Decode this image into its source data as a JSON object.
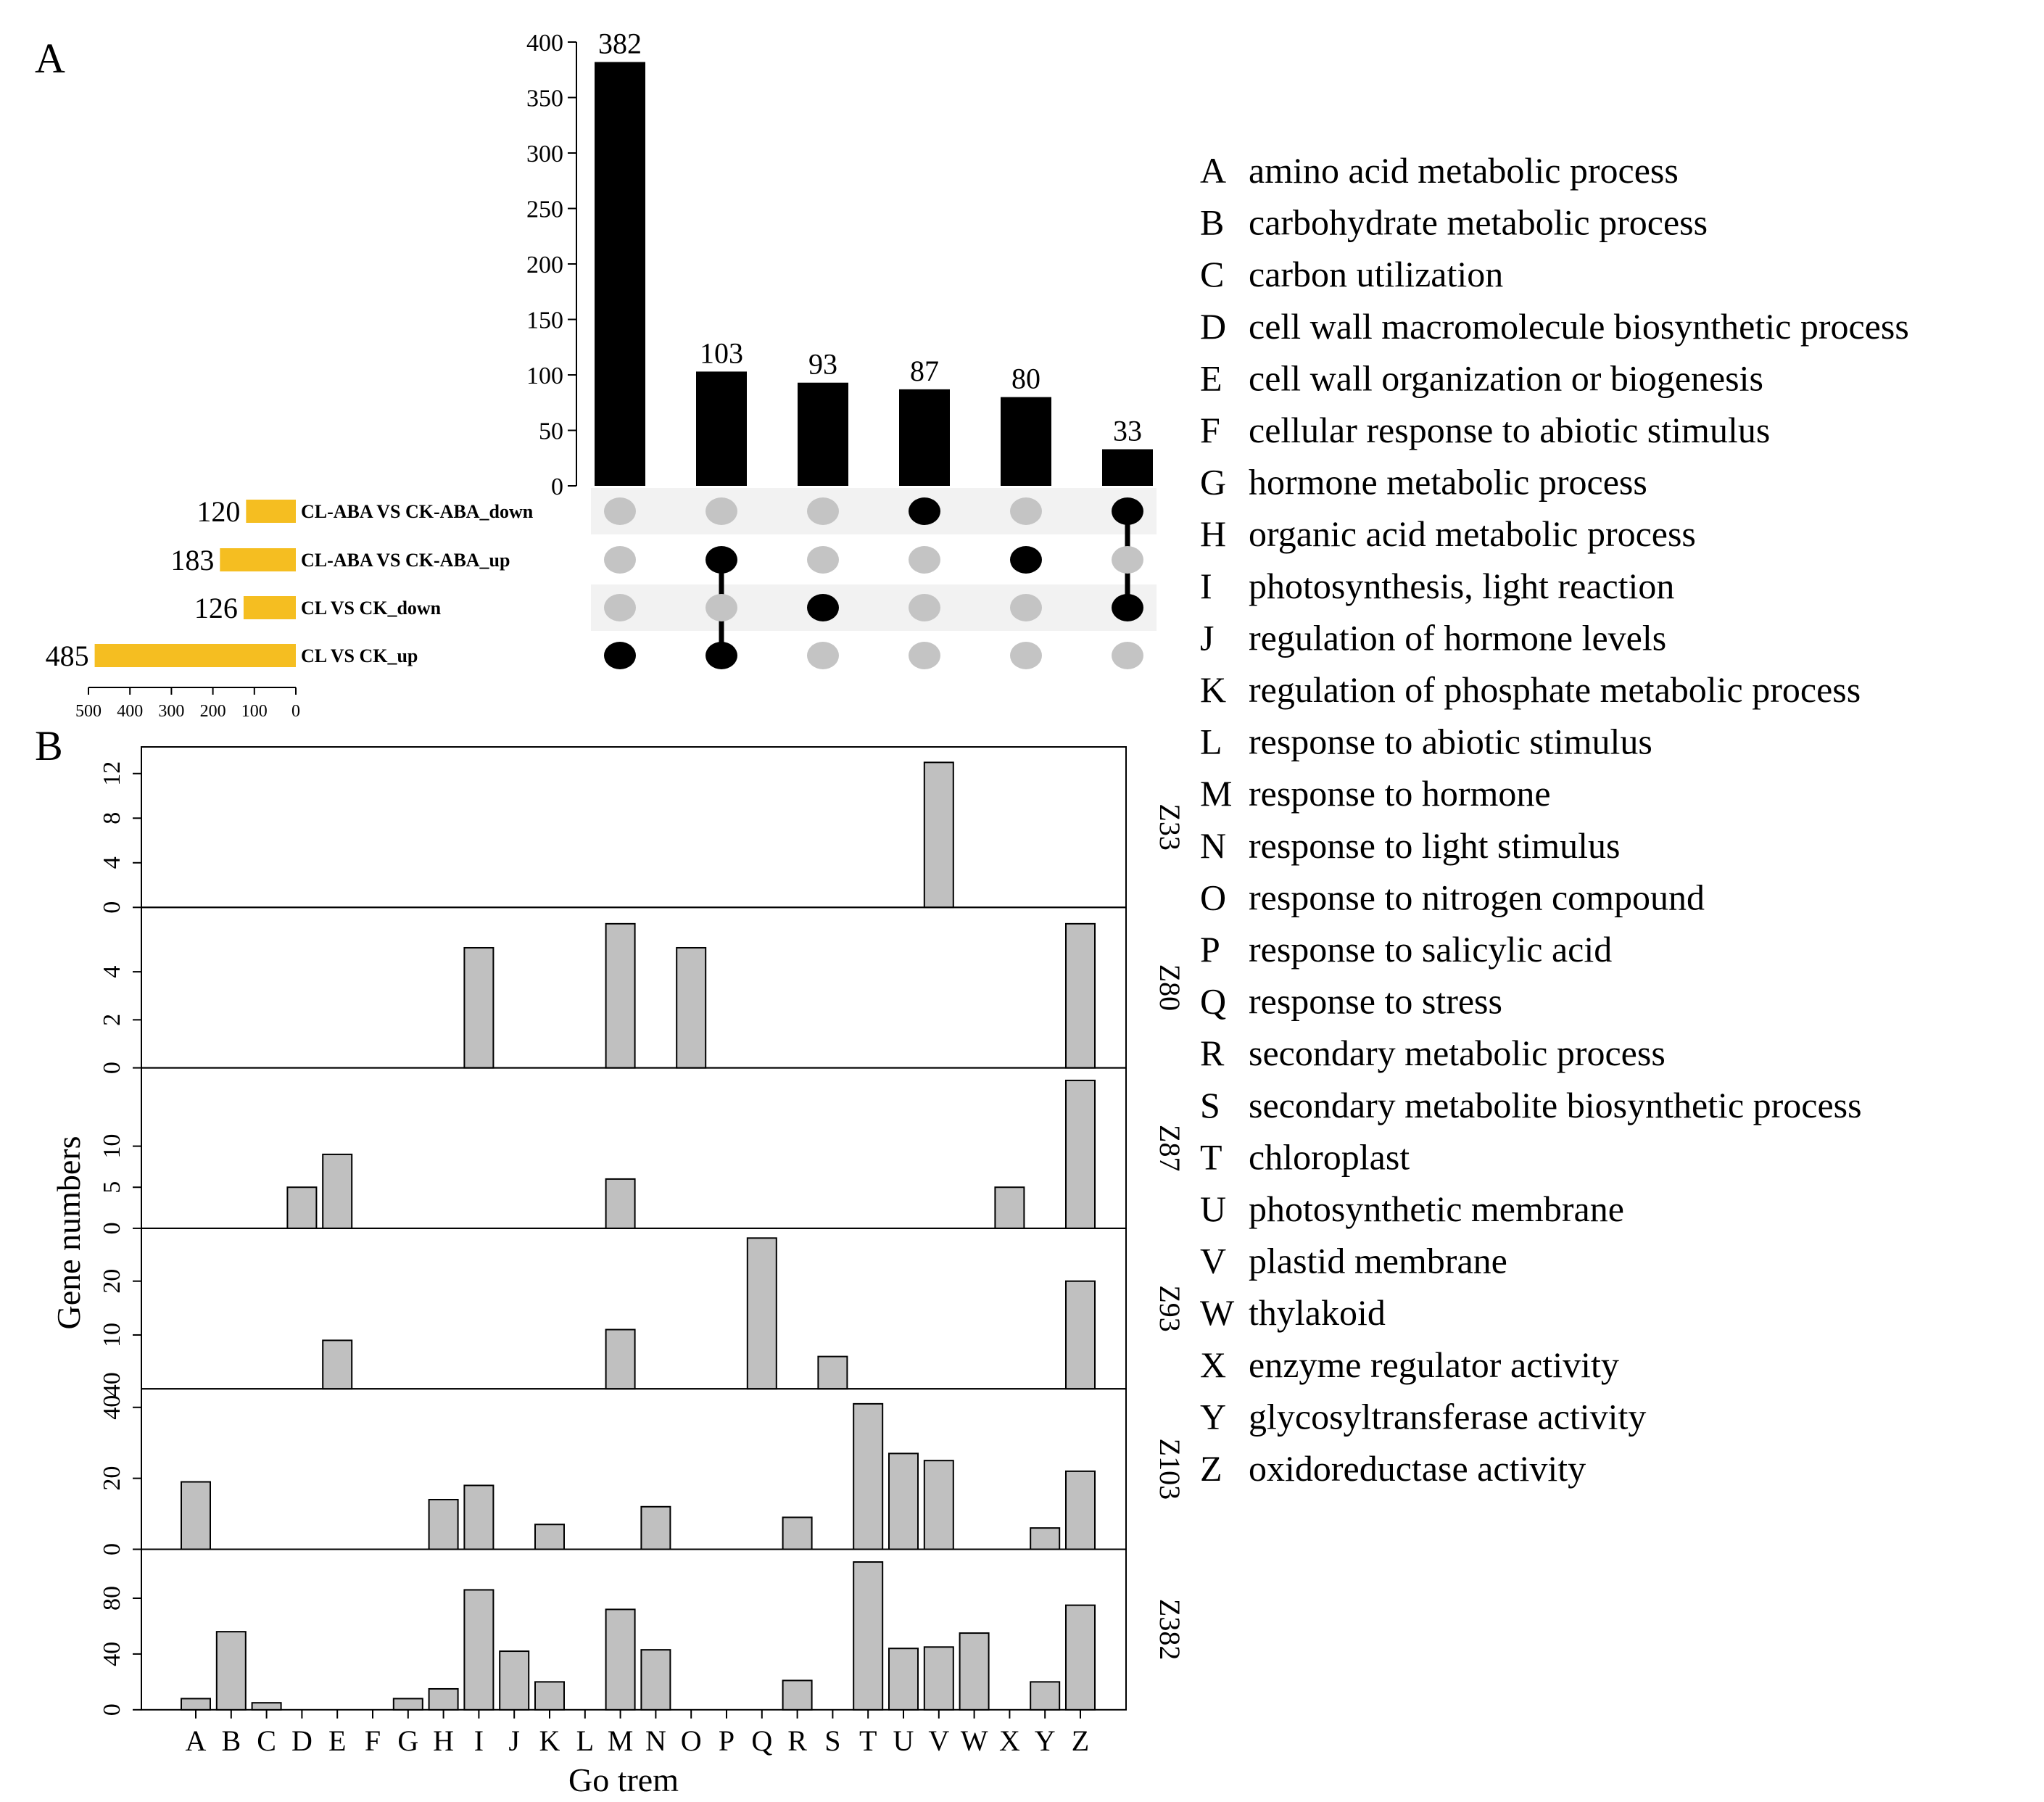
{
  "colors": {
    "bar": "#000000",
    "setbar": "#F5BE21",
    "dot_on": "#000000",
    "dot_off": "#C4C4C4",
    "band": "#F2F2F2",
    "gobar": "#C0C0C0"
  },
  "panel_a": {
    "label": "A",
    "upset": {
      "intersection_sizes": [
        382,
        103,
        93,
        87,
        80,
        33
      ],
      "yticks": [
        0,
        50,
        100,
        150,
        200,
        250,
        300,
        350,
        400
      ],
      "ylim": [
        0,
        400
      ],
      "sets": [
        {
          "name": "CL-ABA VS CK-ABA_down",
          "size": 120
        },
        {
          "name": "CL-ABA VS CK-ABA_up",
          "size": 183
        },
        {
          "name": "CL VS CK_down",
          "size": 126
        },
        {
          "name": "CL VS CK_up",
          "size": 485
        }
      ],
      "membership": [
        [
          3
        ],
        [
          1,
          3
        ],
        [
          2
        ],
        [
          0
        ],
        [
          1
        ],
        [
          0,
          2
        ]
      ],
      "set_axis_ticks": [
        500,
        400,
        300,
        200,
        100,
        0
      ],
      "set_axis_max": 500
    }
  },
  "panel_b": {
    "label": "B",
    "ylabel": "Gene numbers",
    "xlabel": "Go trem",
    "categories": [
      "A",
      "B",
      "C",
      "D",
      "E",
      "F",
      "G",
      "H",
      "I",
      "J",
      "K",
      "L",
      "M",
      "N",
      "O",
      "P",
      "Q",
      "R",
      "S",
      "T",
      "U",
      "V",
      "W",
      "X",
      "Y",
      "Z"
    ]
  },
  "legend": [
    {
      "key": "A",
      "text": "amino acid metabolic process"
    },
    {
      "key": "B",
      "text": "carbohydrate metabolic process"
    },
    {
      "key": "C",
      "text": "carbon utilization"
    },
    {
      "key": "D",
      "text": "cell wall macromolecule biosynthetic process"
    },
    {
      "key": "E",
      "text": "cell wall organization or biogenesis"
    },
    {
      "key": "F",
      "text": "cellular response to abiotic stimulus"
    },
    {
      "key": "G",
      "text": "hormone metabolic process"
    },
    {
      "key": "H",
      "text": "organic acid metabolic process"
    },
    {
      "key": "I",
      "text": "photosynthesis, light reaction"
    },
    {
      "key": "J",
      "text": "regulation of hormone levels"
    },
    {
      "key": "K",
      "text": "regulation of phosphate metabolic process"
    },
    {
      "key": "L",
      "text": "response to abiotic stimulus"
    },
    {
      "key": "M",
      "text": "response to hormone"
    },
    {
      "key": "N",
      "text": "response to light stimulus"
    },
    {
      "key": "O",
      "text": "response to nitrogen compound"
    },
    {
      "key": "P",
      "text": "response to salicylic acid"
    },
    {
      "key": "Q",
      "text": "response to stress"
    },
    {
      "key": "R",
      "text": "secondary metabolic process"
    },
    {
      "key": "S",
      "text": "secondary metabolite biosynthetic process"
    },
    {
      "key": "T",
      "text": "chloroplast"
    },
    {
      "key": "U",
      "text": "photosynthetic membrane"
    },
    {
      "key": "V",
      "text": "plastid membrane"
    },
    {
      "key": "W",
      "text": "thylakoid"
    },
    {
      "key": "X",
      "text": "enzyme regulator activity"
    },
    {
      "key": "Y",
      "text": "glycosyltransferase activity"
    },
    {
      "key": "Z",
      "text": "oxidoreductase activity"
    }
  ],
  "chart_data": [
    {
      "type": "bar",
      "title": "",
      "categories": [
        "382",
        "103",
        "93",
        "87",
        "80",
        "33"
      ],
      "values": [
        382,
        103,
        93,
        87,
        80,
        33
      ],
      "ylim": [
        0,
        400
      ],
      "yticks": [
        0,
        50,
        100,
        150,
        200,
        250,
        300,
        350,
        400
      ]
    },
    {
      "type": "bar",
      "orientation": "horizontal",
      "categories": [
        "CL-ABA VS CK-ABA_down",
        "CL-ABA VS CK-ABA_up",
        "CL VS CK_down",
        "CL VS CK_up"
      ],
      "values": [
        120,
        183,
        126,
        485
      ],
      "xlim": [
        500,
        0
      ],
      "xticks": [
        500,
        400,
        300,
        200,
        100,
        0
      ]
    },
    {
      "type": "bar",
      "xlabel": "Go trem",
      "ylabel": "Gene numbers",
      "categories": [
        "A",
        "B",
        "C",
        "D",
        "E",
        "F",
        "G",
        "H",
        "I",
        "J",
        "K",
        "L",
        "M",
        "N",
        "O",
        "P",
        "Q",
        "R",
        "S",
        "T",
        "U",
        "V",
        "W",
        "X",
        "Y",
        "Z"
      ],
      "series": [
        {
          "name": "Z33",
          "ylim": [
            0,
            14
          ],
          "yticks": [
            0,
            4,
            8,
            12
          ],
          "values": [
            0,
            0,
            0,
            0,
            0,
            0,
            0,
            0,
            0,
            0,
            0,
            0,
            0,
            0,
            0,
            0,
            0,
            0,
            0,
            0,
            0,
            13,
            0,
            0,
            0,
            0
          ]
        },
        {
          "name": "Z80",
          "ylim": [
            0,
            6.5
          ],
          "yticks": [
            0,
            2,
            4
          ],
          "values": [
            0,
            0,
            0,
            0,
            0,
            0,
            0,
            0,
            5,
            0,
            0,
            0,
            6,
            0,
            5,
            0,
            0,
            0,
            0,
            0,
            0,
            0,
            0,
            0,
            0,
            6
          ]
        },
        {
          "name": "Z87",
          "ylim": [
            0,
            19
          ],
          "yticks": [
            0,
            5,
            10
          ],
          "values": [
            0,
            0,
            0,
            5,
            9,
            0,
            0,
            0,
            0,
            0,
            0,
            0,
            6,
            0,
            0,
            0,
            0,
            0,
            0,
            0,
            0,
            0,
            0,
            5,
            0,
            18
          ]
        },
        {
          "name": "Z93",
          "ylim": [
            0,
            29
          ],
          "yticks": [
            10,
            20,
            40
          ],
          "values": [
            0,
            0,
            0,
            0,
            9,
            0,
            0,
            0,
            0,
            0,
            0,
            0,
            11,
            0,
            0,
            0,
            28,
            0,
            6,
            0,
            0,
            0,
            0,
            0,
            0,
            20
          ]
        },
        {
          "name": "Z103",
          "ylim": [
            0,
            44
          ],
          "yticks": [
            0,
            20,
            40
          ],
          "values": [
            19,
            0,
            0,
            0,
            0,
            0,
            0,
            14,
            18,
            0,
            7,
            0,
            0,
            12,
            0,
            0,
            0,
            9,
            0,
            41,
            27,
            25,
            0,
            0,
            6,
            22
          ]
        },
        {
          "name": "Z382",
          "ylim": [
            0,
            112
          ],
          "yticks": [
            0,
            40,
            80
          ],
          "values": [
            8,
            56,
            5,
            0,
            0,
            0,
            8,
            15,
            86,
            42,
            20,
            0,
            72,
            43,
            0,
            0,
            0,
            21,
            0,
            106,
            44,
            45,
            55,
            0,
            20,
            75
          ]
        }
      ]
    }
  ]
}
